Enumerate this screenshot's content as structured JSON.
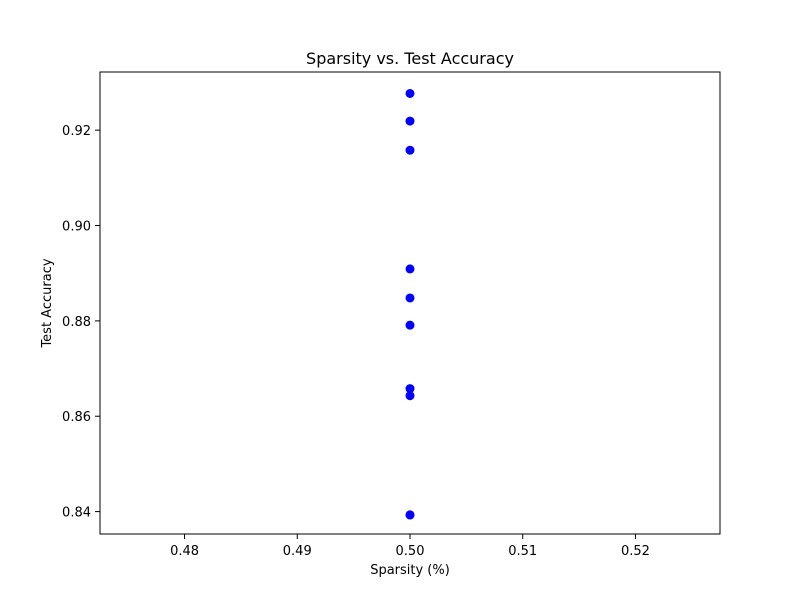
{
  "chart_data": {
    "type": "scatter",
    "title": "Sparsity vs. Test Accuracy",
    "xlabel": "Sparsity (%)",
    "ylabel": "Test Accuracy",
    "xlim": [
      0.4725,
      0.5275
    ],
    "ylim": [
      0.8353,
      0.9322
    ],
    "x_ticks": [
      0.48,
      0.49,
      0.5,
      0.51,
      0.52
    ],
    "x_tick_labels": [
      "0.48",
      "0.49",
      "0.50",
      "0.51",
      "0.52"
    ],
    "y_ticks": [
      0.84,
      0.86,
      0.88,
      0.9,
      0.92
    ],
    "y_tick_labels": [
      "0.84",
      "0.86",
      "0.88",
      "0.90",
      "0.92"
    ],
    "grid": false,
    "marker_color": "#0000ff",
    "x": [
      0.5,
      0.5,
      0.5,
      0.5,
      0.5,
      0.5,
      0.5,
      0.5,
      0.5,
      0.5
    ],
    "y": [
      0.9277,
      0.9219,
      0.9158,
      0.8909,
      0.8848,
      0.8791,
      0.8658,
      0.8643,
      0.8393,
      0.8393
    ]
  }
}
